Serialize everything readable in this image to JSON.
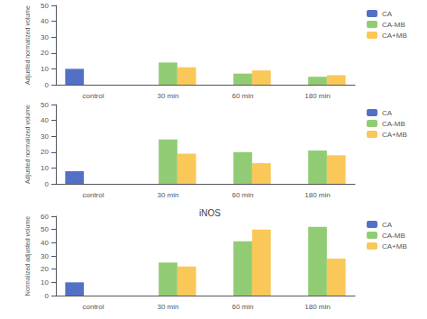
{
  "chart_data": [
    {
      "type": "bar",
      "ylabel": "Adjusted normalized volume",
      "categories": [
        "control",
        "30 min",
        "60 min",
        "180 min"
      ],
      "series": [
        {
          "name": "CA",
          "color": "#5470c6",
          "values": [
            10,
            0,
            0,
            0
          ]
        },
        {
          "name": "CA-MB",
          "color": "#91cc75",
          "values": [
            0,
            14,
            7,
            5
          ]
        },
        {
          "name": "CA+MB",
          "color": "#fac858",
          "values": [
            0,
            11,
            9,
            6
          ]
        }
      ],
      "ylim": [
        0,
        50
      ],
      "yticks": [
        0,
        10,
        20,
        30,
        40,
        50
      ],
      "grid": false,
      "legend": "upper right"
    },
    {
      "type": "bar",
      "ylabel": "Adjusted normalized volume",
      "categories": [
        "control",
        "30 min",
        "60 min",
        "180 min"
      ],
      "series": [
        {
          "name": "CA",
          "color": "#5470c6",
          "values": [
            8,
            0,
            0,
            0
          ]
        },
        {
          "name": "CA-MB",
          "color": "#91cc75",
          "values": [
            0,
            28,
            20,
            21
          ]
        },
        {
          "name": "CA+MB",
          "color": "#fac858",
          "values": [
            0,
            19,
            13,
            18
          ]
        }
      ],
      "ylim": [
        0,
        50
      ],
      "yticks": [
        0,
        10,
        20,
        30,
        40,
        50
      ],
      "grid": false,
      "legend": "upper right"
    },
    {
      "type": "bar",
      "title": "iNOS",
      "ylabel": "Normalized adjusted volume",
      "categories": [
        "control",
        "30 min",
        "60 min",
        "180 min"
      ],
      "series": [
        {
          "name": "CA",
          "color": "#5470c6",
          "values": [
            10,
            0,
            0,
            0
          ]
        },
        {
          "name": "CA-MB",
          "color": "#91cc75",
          "values": [
            0,
            25,
            41,
            52
          ]
        },
        {
          "name": "CA+MB",
          "color": "#fac858",
          "values": [
            0,
            22,
            50,
            28
          ]
        }
      ],
      "ylim": [
        0,
        60
      ],
      "yticks": [
        0,
        10,
        20,
        30,
        40,
        50,
        60
      ],
      "grid": false,
      "legend": "upper right"
    }
  ]
}
